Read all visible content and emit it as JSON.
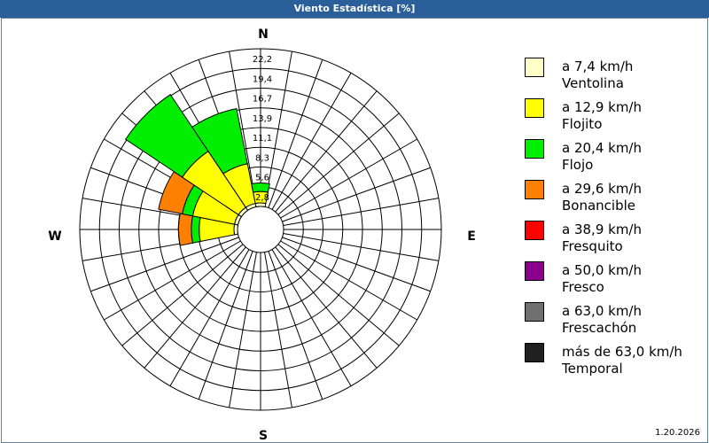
{
  "window": {
    "title": "Viento Estadística [%]"
  },
  "footer": {
    "date": "1.20.2026"
  },
  "chart_data": {
    "type": "wind-rose",
    "title": "Viento Estadística [%]",
    "directions": [
      "N",
      "NNE",
      "NE",
      "ENE",
      "E",
      "ESE",
      "SE",
      "SSE",
      "S",
      "SSW",
      "SW",
      "WSW",
      "W",
      "WNW",
      "NW",
      "NNW"
    ],
    "compass_labels": {
      "n": "N",
      "e": "E",
      "s": "S",
      "w": "W"
    },
    "radial_ticks": [
      "2,8",
      "5,6",
      "8,3",
      "11,1",
      "13,9",
      "16,7",
      "19,4",
      "22,2"
    ],
    "rmax": 22.2,
    "bins": [
      {
        "label": "a 7,4 km/h",
        "name": "Ventolina",
        "color": "#ffffc8"
      },
      {
        "label": "a 12,9 km/h",
        "name": "Flojito",
        "color": "#ffff00"
      },
      {
        "label": "a 20,4 km/h",
        "name": "Flojo",
        "color": "#00ee00"
      },
      {
        "label": "a 29,6 km/h",
        "name": "Bonancible",
        "color": "#ff8000"
      },
      {
        "label": "a 38,9 km/h",
        "name": "Fresquito",
        "color": "#ff0000"
      },
      {
        "label": "a 50,0 km/h",
        "name": "Fresco",
        "color": "#8b008b"
      },
      {
        "label": "a 63,0 km/h",
        "name": "Frescachón",
        "color": "#707070"
      },
      {
        "label": "más de 63,0 km/h",
        "name": "Temporal",
        "color": "#202020"
      }
    ],
    "sectors": [
      {
        "direction": "W",
        "cumulative": [
          0.5,
          5.4,
          6.5,
          8.3
        ]
      },
      {
        "direction": "WNW",
        "cumulative": [
          0.5,
          6.5,
          8.0,
          11.4
        ]
      },
      {
        "direction": "NW",
        "cumulative": [
          0.5,
          10.0,
          19.6
        ]
      },
      {
        "direction": "NNW",
        "cumulative": [
          0.5,
          6.2,
          14.1
        ]
      },
      {
        "direction": "N",
        "cumulative": [
          0.5,
          2.1,
          3.3
        ]
      }
    ]
  }
}
